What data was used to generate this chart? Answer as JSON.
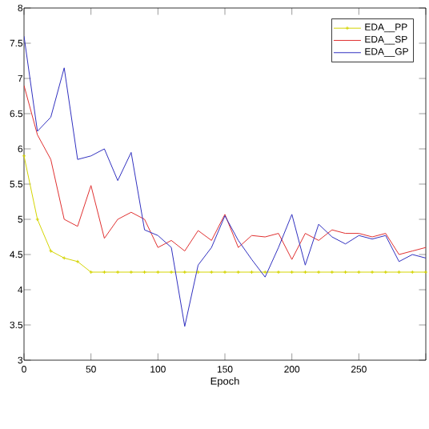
{
  "chart_data": {
    "type": "line",
    "xlabel": "Epoch",
    "x": [
      0,
      10,
      20,
      30,
      40,
      50,
      60,
      70,
      80,
      90,
      100,
      110,
      120,
      130,
      140,
      150,
      160,
      170,
      180,
      190,
      200,
      210,
      220,
      230,
      240,
      250,
      260,
      270,
      280,
      290,
      300
    ],
    "series": [
      {
        "name": "EDA__PP",
        "color": "#d4d400",
        "marker": "cross",
        "values": [
          5.9,
          5.0,
          4.55,
          4.45,
          4.4,
          4.25,
          4.25,
          4.25,
          4.25,
          4.25,
          4.25,
          4.25,
          4.25,
          4.25,
          4.25,
          4.25,
          4.25,
          4.25,
          4.25,
          4.25,
          4.25,
          4.25,
          4.25,
          4.25,
          4.25,
          4.25,
          4.25,
          4.25,
          4.25,
          4.25,
          4.25
        ]
      },
      {
        "name": "EDA__SP",
        "color": "#e03030",
        "values": [
          6.9,
          6.2,
          5.85,
          5.0,
          4.9,
          5.48,
          4.73,
          5.0,
          5.1,
          5.0,
          4.6,
          4.7,
          4.55,
          4.84,
          4.7,
          5.07,
          4.6,
          4.77,
          4.75,
          4.8,
          4.43,
          4.8,
          4.7,
          4.85,
          4.8,
          4.8,
          4.75,
          4.8,
          4.5,
          4.55,
          4.6
        ]
      },
      {
        "name": "EDA__GP",
        "color": "#3030c0",
        "values": [
          7.6,
          6.25,
          6.45,
          7.15,
          5.85,
          5.9,
          6.0,
          5.55,
          5.95,
          4.85,
          4.77,
          4.6,
          3.48,
          4.35,
          4.6,
          5.05,
          4.7,
          4.43,
          4.18,
          4.6,
          5.07,
          4.35,
          4.93,
          4.75,
          4.65,
          4.77,
          4.72,
          4.77,
          4.4,
          4.5,
          4.45
        ]
      }
    ],
    "xlim": [
      0,
      300
    ],
    "xticks": [
      0,
      50,
      100,
      150,
      200,
      250,
      {
        "value": 300,
        "label": null
      }
    ],
    "ylim": [
      3,
      8
    ],
    "yticks": [
      3,
      3.5,
      4,
      4.5,
      5,
      5.5,
      6,
      6.5,
      7,
      7.5,
      8
    ],
    "legend": "top right",
    "grid": false
  }
}
